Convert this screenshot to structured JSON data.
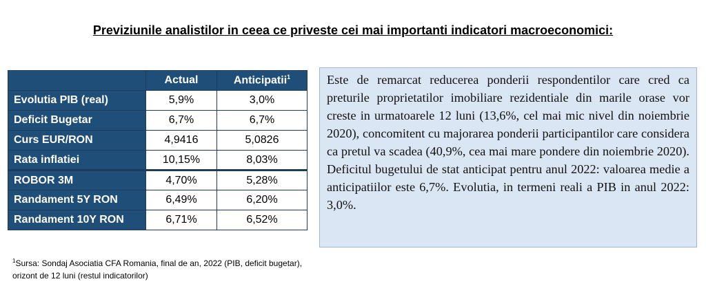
{
  "title": "Previziunile analistilor in ceea ce priveste cei mai importanti indicatori macroeconomici:",
  "table": {
    "headers": [
      "",
      "Actual",
      "Anticipatii"
    ],
    "header_footnote_mark": "1",
    "rows": [
      {
        "label": "Evolutia PIB (real)",
        "actual": "5,9%",
        "anticipatii": "3,0%"
      },
      {
        "label": "Deficit Bugetar",
        "actual": "6,7%",
        "anticipatii": "6,7%"
      },
      {
        "label": "Curs EUR/RON",
        "actual": "4,9416",
        "anticipatii": "5,0826"
      },
      {
        "label": "Rata inflatiei",
        "actual": "10,15%",
        "anticipatii": "8,03%"
      },
      {
        "label": "ROBOR 3M",
        "actual": "4,70%",
        "anticipatii": "5,28%"
      },
      {
        "label": "Randament 5Y RON",
        "actual": "6,49%",
        "anticipatii": "6,20%"
      },
      {
        "label": "Randament 10Y RON",
        "actual": "6,71%",
        "anticipatii": "6,52%"
      }
    ]
  },
  "source": {
    "mark": "1",
    "text": "Sursa: Sondaj Asociatia CFA Romania, final de an, 2022 (PIB, deficit bugetar), orizont de 12 luni (restul indicatorilor)"
  },
  "commentary": "Este de remarcat reducerea ponderii respondentilor care cred ca preturile proprietatilor imobiliare rezidentiale din marile orase vor creste in urmatoarele 12 luni (13,6%, cel mai mic nivel din noiembrie 2020), concomitent cu majorarea ponderii participantilor care considera ca pretul va scadea (40,9%, cea mai mare pondere din noiembrie 2020). Deficitul bugetului de stat anticipat pentru anul 2022: valoarea medie a anticipatiilor este 6,7%. Evolutia, in termeni reali a PIB in anul 2022: 3,0%."
}
